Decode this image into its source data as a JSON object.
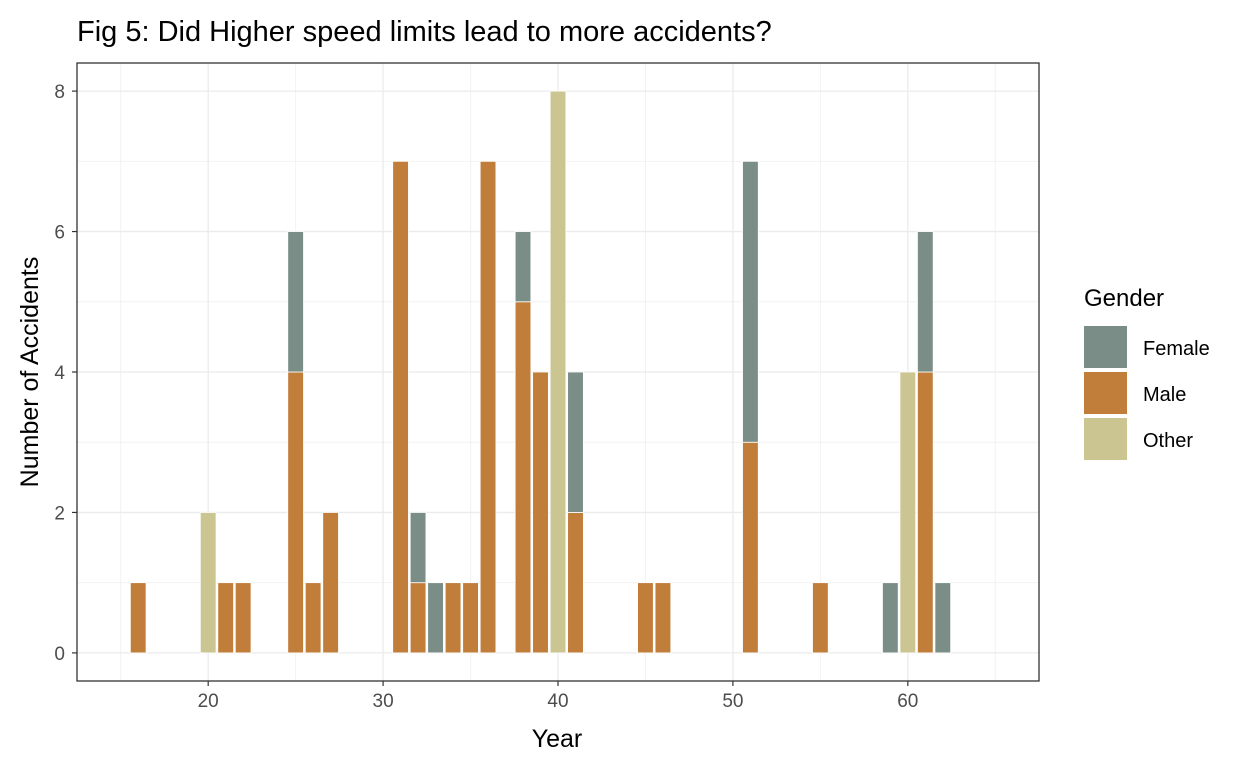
{
  "chart_data": {
    "type": "bar",
    "stacked": true,
    "title": "Fig 5: Did Higher speed limits lead to more accidents?",
    "xlabel": "Year",
    "ylabel": "Number of Accidents",
    "xlim": [
      12.5,
      67.5
    ],
    "ylim": [
      -0.4,
      8.4
    ],
    "x_ticks": [
      20,
      30,
      40,
      50,
      60
    ],
    "y_ticks": [
      0,
      2,
      4,
      6,
      8
    ],
    "grid": true,
    "legend": {
      "title": "Gender",
      "position": "right"
    },
    "series": [
      {
        "name": "Male",
        "color": "#C17E3B",
        "points": [
          [
            16,
            1
          ],
          [
            21,
            1
          ],
          [
            22,
            1
          ],
          [
            25,
            4
          ],
          [
            26,
            1
          ],
          [
            27,
            2
          ],
          [
            31,
            7
          ],
          [
            32,
            1
          ],
          [
            34,
            1
          ],
          [
            35,
            1
          ],
          [
            36,
            7
          ],
          [
            38,
            5
          ],
          [
            39,
            4
          ],
          [
            41,
            2
          ],
          [
            45,
            1
          ],
          [
            46,
            1
          ],
          [
            51,
            3
          ],
          [
            55,
            1
          ],
          [
            61,
            4
          ]
        ]
      },
      {
        "name": "Female",
        "color": "#7A8E87",
        "points": [
          [
            25,
            2
          ],
          [
            32,
            1
          ],
          [
            33,
            1
          ],
          [
            38,
            1
          ],
          [
            41,
            2
          ],
          [
            51,
            4
          ],
          [
            59,
            1
          ],
          [
            61,
            2
          ],
          [
            62,
            1
          ]
        ]
      },
      {
        "name": "Other",
        "color": "#CBC592",
        "points": [
          [
            20,
            2
          ],
          [
            40,
            8
          ],
          [
            60,
            4
          ]
        ]
      }
    ],
    "legend_order": [
      "Female",
      "Male",
      "Other"
    ]
  }
}
